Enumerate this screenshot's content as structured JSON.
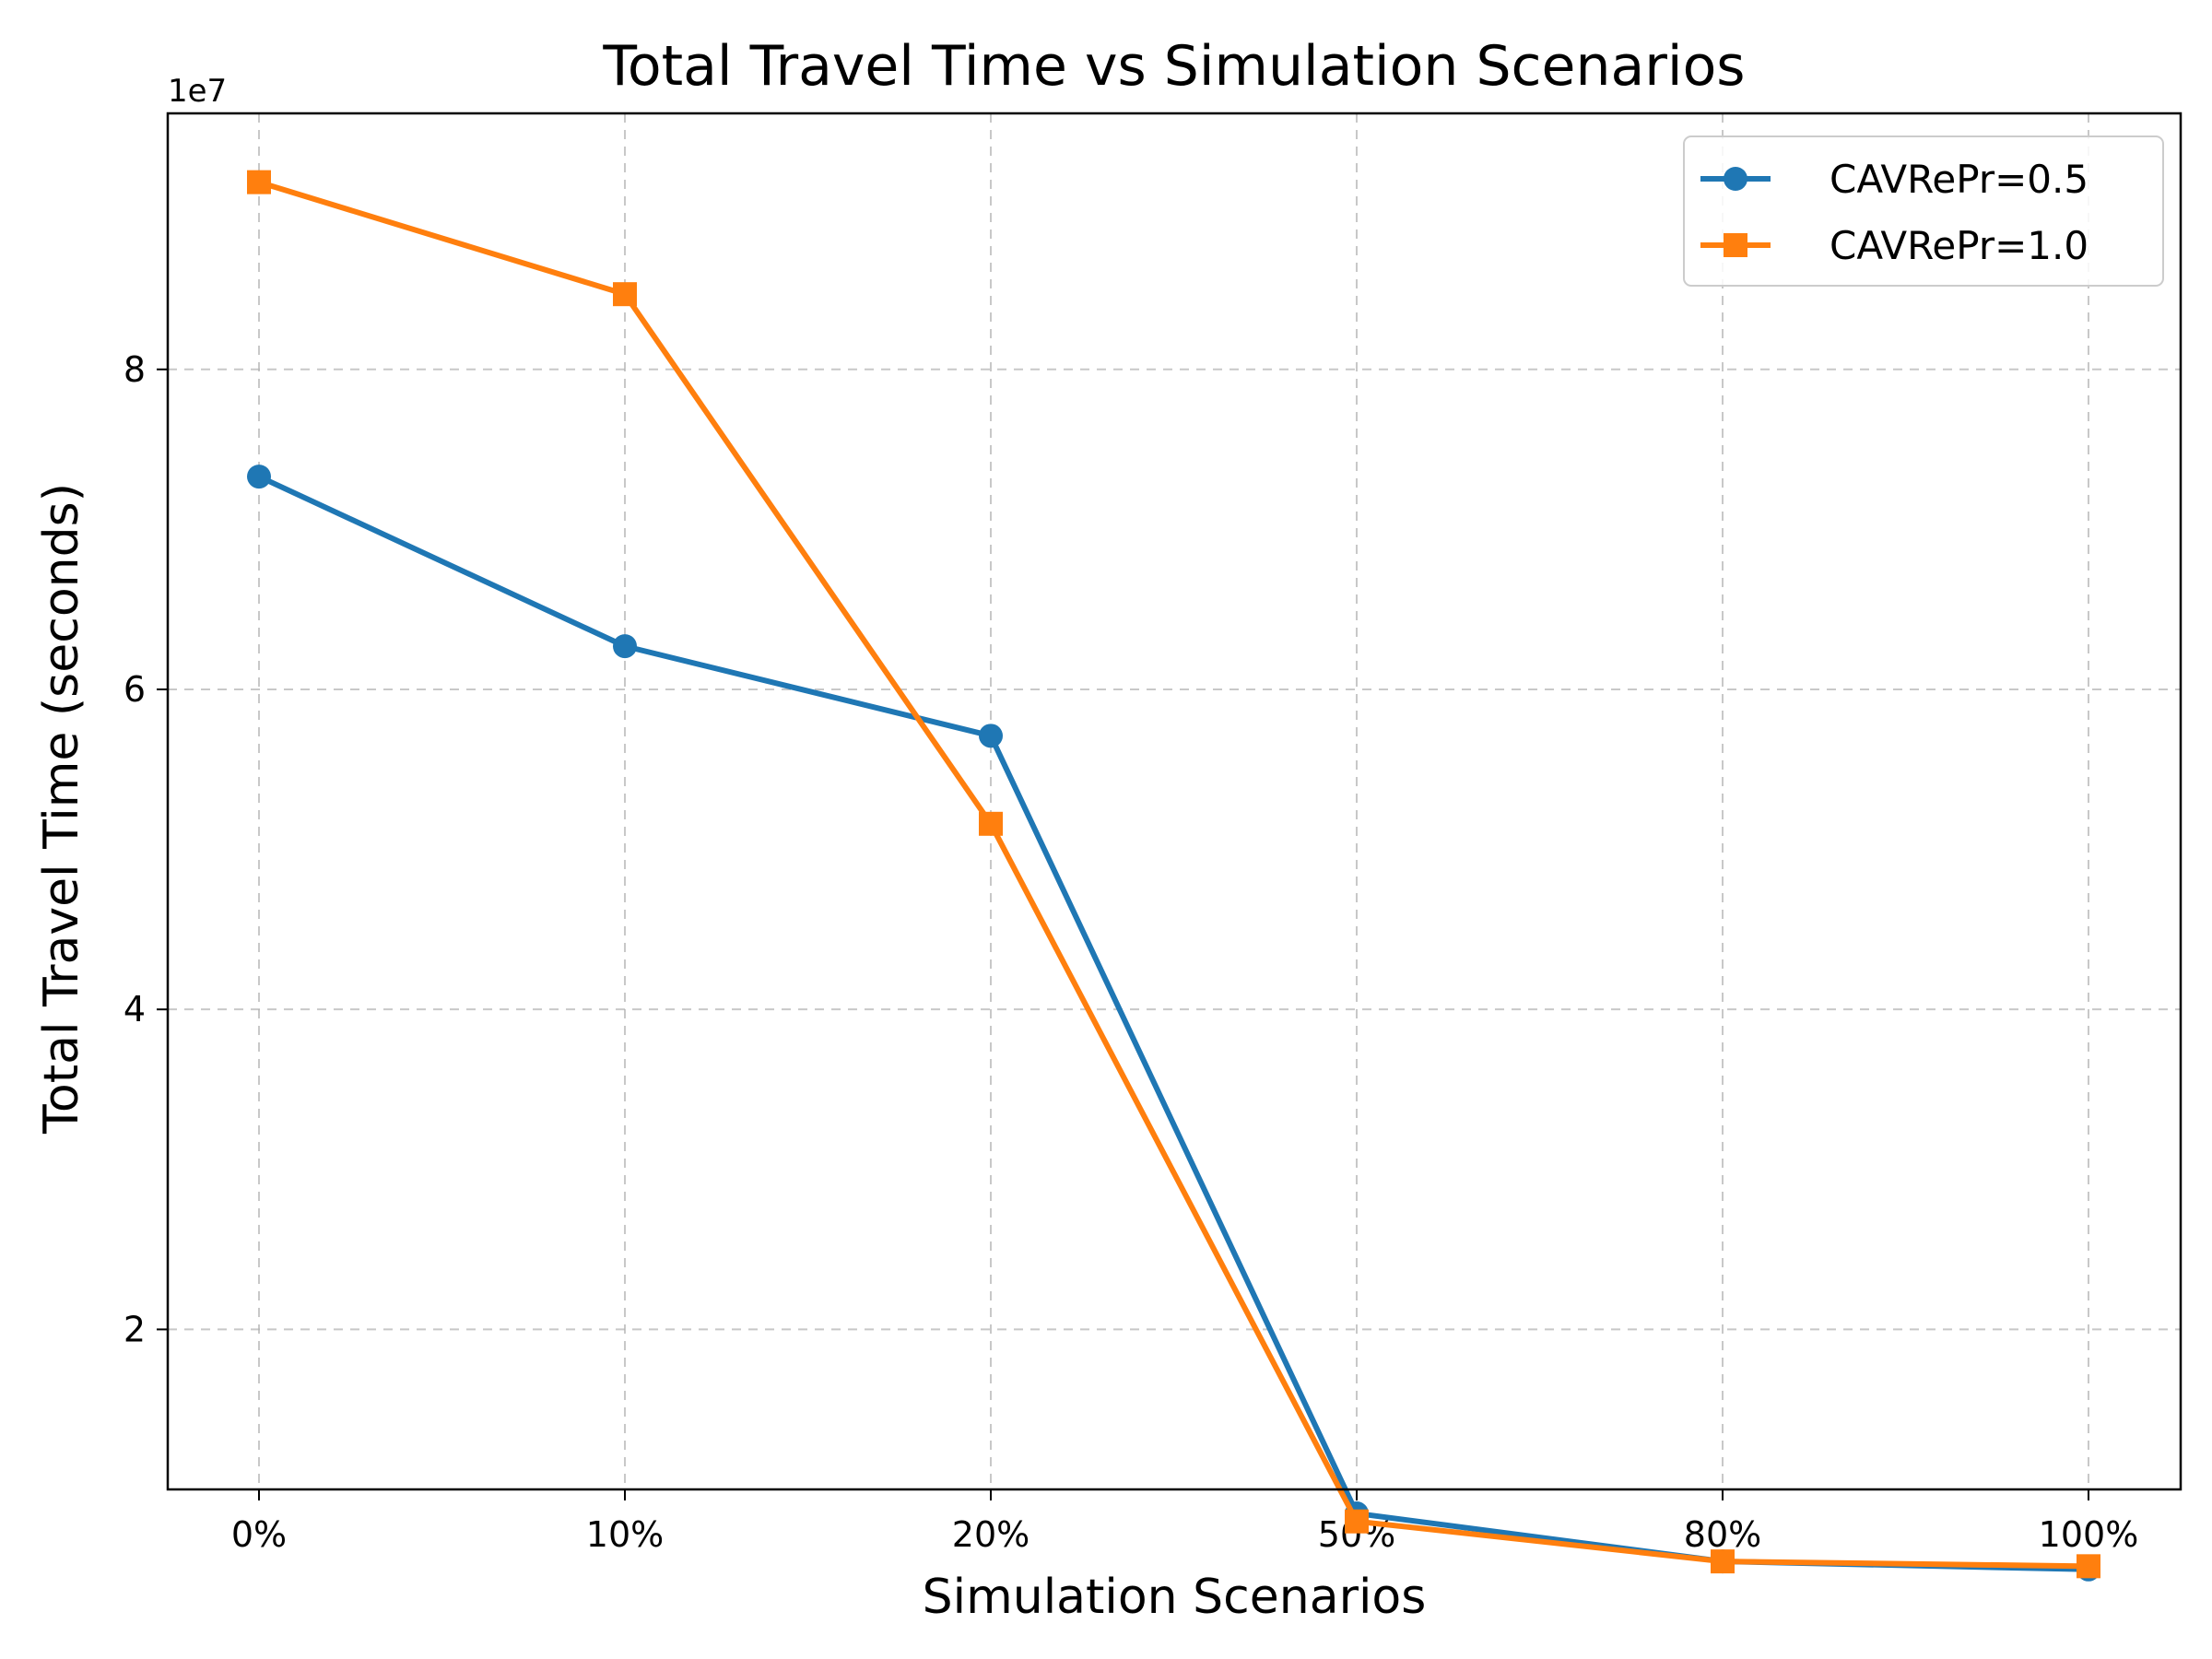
{
  "chart_data": {
    "type": "line",
    "title": "Total Travel Time vs Simulation Scenarios",
    "xlabel": "Simulation Scenarios",
    "ylabel": "Total Travel Time (seconds)",
    "y_offset_label": "1e7",
    "categories": [
      "0%",
      "10%",
      "20%",
      "50%",
      "80%",
      "100%"
    ],
    "y_ticks": [
      2,
      4,
      6,
      8
    ],
    "ylim": [
      1.0,
      9.6
    ],
    "y_unit_scale": "1e7",
    "grid": true,
    "legend_position": "top-right",
    "series": [
      {
        "name": "CAVRePr=0.5",
        "marker": "circle",
        "color": "#1f77b4",
        "values": [
          7.33,
          6.27,
          5.71,
          0.85,
          0.55,
          0.5
        ]
      },
      {
        "name": "CAVRePr=1.0",
        "marker": "square",
        "color": "#ff7f0e",
        "values": [
          9.17,
          8.47,
          5.16,
          0.8,
          0.55,
          0.52
        ]
      }
    ]
  }
}
